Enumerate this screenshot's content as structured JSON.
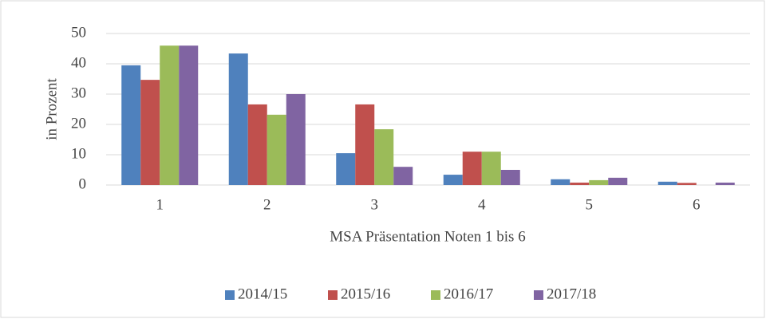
{
  "chart_data": {
    "type": "bar",
    "x_label": "MSA Präsentation Noten 1 bis 6",
    "y_label": "in Prozent",
    "categories": [
      "1",
      "2",
      "3",
      "4",
      "5",
      "6"
    ],
    "series": [
      {
        "name": "2014/15",
        "color": "#4f81bd",
        "values": [
          39.5,
          43.4,
          10.5,
          3.4,
          1.9,
          1.1
        ]
      },
      {
        "name": "2015/16",
        "color": "#c0504d",
        "values": [
          34.7,
          26.6,
          26.6,
          11,
          0.8,
          0.7
        ]
      },
      {
        "name": "2016/17",
        "color": "#9bbb59",
        "values": [
          46,
          23.2,
          18.4,
          11,
          1.6,
          0
        ]
      },
      {
        "name": "2017/18",
        "color": "#8064a2",
        "values": [
          46,
          30,
          6,
          5,
          2.4,
          0.8
        ]
      }
    ],
    "ylim": [
      0,
      50
    ],
    "yticks": [
      0,
      10,
      20,
      30,
      40,
      50
    ],
    "grid": true,
    "legend": "bottom"
  }
}
